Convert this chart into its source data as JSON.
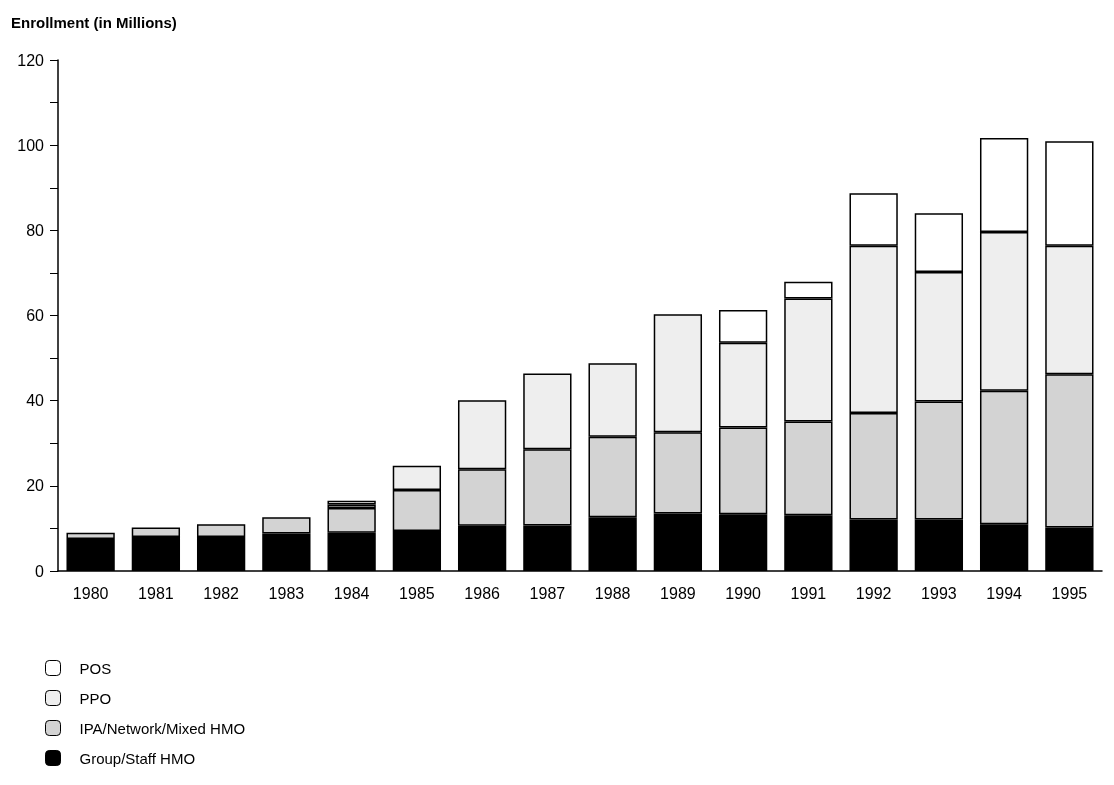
{
  "chart_data": {
    "type": "bar",
    "stacked": true,
    "ylabel": "Enrollment (in Millions)",
    "categories": [
      "1980",
      "1981",
      "1982",
      "1983",
      "1984",
      "1985",
      "1986",
      "1987",
      "1988",
      "1989",
      "1990",
      "1991",
      "1992",
      "1993",
      "1994",
      "1995"
    ],
    "series": [
      {
        "name": "Group/Staff HMO",
        "color": "#000000",
        "values": [
          7.5,
          8.0,
          8.0,
          8.8,
          9.0,
          9.4,
          10.6,
          10.7,
          12.6,
          13.5,
          13.3,
          13.1,
          12.1,
          12.1,
          11.0,
          10.2
        ]
      },
      {
        "name": "IPA/Network/Mixed HMO",
        "color": "#d3d3d3",
        "values": [
          1.5,
          2.2,
          3.0,
          3.8,
          5.8,
          9.6,
          13.3,
          17.9,
          18.9,
          19.1,
          20.4,
          22.0,
          25.0,
          27.7,
          31.3,
          36.0
        ]
      },
      {
        "name": "PPO",
        "color": "#eeeeee",
        "values": [
          null,
          null,
          null,
          null,
          0.8,
          5.7,
          16.2,
          17.8,
          17.3,
          27.7,
          19.9,
          28.9,
          39.3,
          30.4,
          37.3,
          30.2
        ]
      },
      {
        "name": "POS",
        "color": "#ffffff",
        "values": [
          null,
          null,
          null,
          null,
          0.9,
          null,
          null,
          null,
          null,
          null,
          7.7,
          3.9,
          12.3,
          13.8,
          22.1,
          24.5
        ]
      }
    ],
    "ylim": [
      0,
      120
    ],
    "yticks": [
      0,
      {
        "value": 10,
        "label": null
      },
      20,
      {
        "value": 30,
        "label": null
      },
      40,
      {
        "value": 50,
        "label": null
      },
      60,
      {
        "value": 70,
        "label": null
      },
      80,
      {
        "value": 90,
        "label": null
      },
      100,
      {
        "value": 110,
        "label": null
      },
      120
    ],
    "grid": false,
    "legend": "bottom left"
  }
}
